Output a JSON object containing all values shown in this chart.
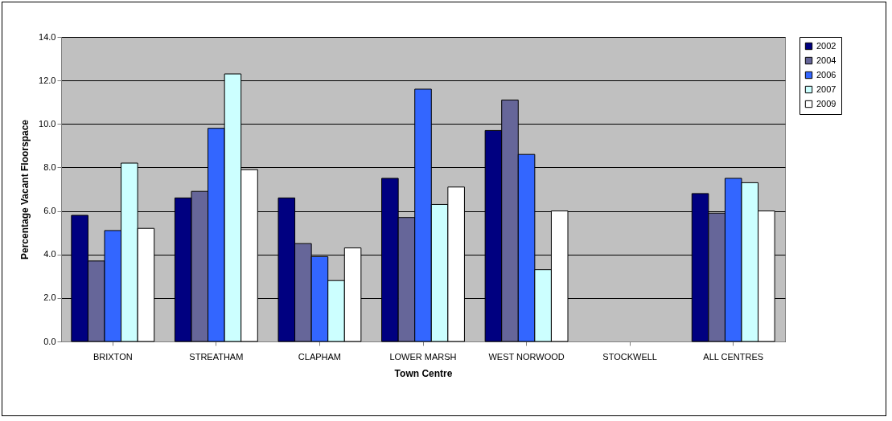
{
  "chart_data": {
    "type": "bar",
    "xlabel": "Town Centre",
    "ylabel": "Percentage Vacant Floorspace",
    "categories": [
      "BRIXTON",
      "STREATHAM",
      "CLAPHAM",
      "LOWER MARSH",
      "WEST NORWOOD",
      "STOCKWELL",
      "ALL CENTRES"
    ],
    "series": [
      {
        "name": "2002",
        "color": "#000080",
        "values": [
          5.8,
          6.6,
          6.6,
          7.5,
          9.7,
          null,
          6.8
        ]
      },
      {
        "name": "2004",
        "color": "#666699",
        "values": [
          3.7,
          6.9,
          4.5,
          5.7,
          11.1,
          null,
          5.9
        ]
      },
      {
        "name": "2006",
        "color": "#3366ff",
        "values": [
          5.1,
          9.8,
          3.9,
          11.6,
          8.6,
          null,
          7.5
        ]
      },
      {
        "name": "2007",
        "color": "#ccffff",
        "values": [
          8.2,
          12.3,
          2.8,
          6.3,
          3.3,
          null,
          7.3
        ]
      },
      {
        "name": "2009",
        "color": "#ffffff",
        "values": [
          5.2,
          7.9,
          4.3,
          7.1,
          6.0,
          null,
          6.0
        ]
      }
    ],
    "ylim": [
      0,
      14
    ],
    "yticks": [
      {
        "value": 0,
        "label": "0.0"
      },
      {
        "value": 2,
        "label": "2.0"
      },
      {
        "value": 4,
        "label": "4.0"
      },
      {
        "value": 6,
        "label": "6.0"
      },
      {
        "value": 8,
        "label": "8.0"
      },
      {
        "value": 10,
        "label": "10.0"
      },
      {
        "value": 12,
        "label": "12.0"
      },
      {
        "value": 14,
        "label": "14.0"
      }
    ],
    "grid": "y",
    "legend": "right"
  }
}
